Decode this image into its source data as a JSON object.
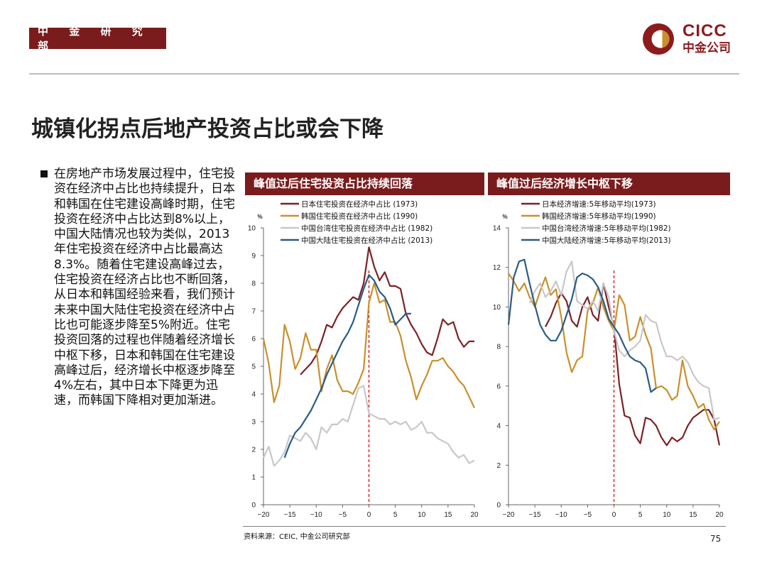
{
  "header": {
    "department": "中 金 研 究 部",
    "logo_en": "CICC",
    "logo_cn": "中金公司"
  },
  "title": "城镇化拐点后地产投资占比或会下降",
  "body_text": "在房地产市场发展过程中，住宅投资在经济中占比也持续提升，日本和韩国在住宅建设高峰时期，住宅投资在经济中占比达到8%以上，中国大陆情况也较为类似，2013年住宅投资在经济中占比最高达8.3%。随着住宅建设高峰过去，住宅投资在经济占比也不断回落，从日本和韩国经验来看，我们预计未来中国大陆住宅投资在经济中占比也可能逐步降至5%附近。住宅投资回落的过程也伴随着经济增长中枢下移，日本和韩国在住宅建设高峰过后，经济增长中枢逐步降至4%左右，其中日本下降更为迅速，而韩国下降相对更加渐进。",
  "source": "资料来源：CEIC, 中金公司研究部",
  "page_number": "75",
  "colors": {
    "brand": "#7a1c1d",
    "japan": "#7b2226",
    "korea": "#c8902c",
    "taiwan": "#c8c8c8",
    "china": "#285c86",
    "peak_line": "#e01a1a"
  },
  "chart_data": [
    {
      "type": "line",
      "title": "峰值过后住宅投资占比持续回落",
      "unit": "%",
      "xlim": [
        -20,
        20
      ],
      "ylim": [
        0,
        10
      ],
      "xticks": [
        -20,
        -15,
        -10,
        -5,
        0,
        5,
        10,
        15,
        20
      ],
      "yticks": [
        0,
        1,
        2,
        3,
        4,
        5,
        6,
        7,
        8,
        9,
        10
      ],
      "peak_marker_x": 0,
      "legend_position": "top",
      "series": [
        {
          "name": "日本住宅投资在经济中占比 (1973)",
          "color_key": "japan",
          "x": [
            -13,
            -12,
            -11,
            -10,
            -9,
            -8,
            -7,
            -6,
            -5,
            -4,
            -3,
            -2,
            -1,
            0,
            1,
            2,
            3,
            4,
            5,
            6,
            7,
            8,
            9,
            10,
            11,
            12,
            13,
            14,
            15,
            16,
            17,
            18,
            19,
            20
          ],
          "y": [
            4.7,
            4.9,
            5.1,
            5.4,
            5.9,
            6.5,
            6.4,
            6.8,
            7.1,
            7.3,
            7.5,
            7.4,
            8.0,
            9.3,
            8.6,
            8.1,
            8.4,
            7.9,
            7.9,
            7.8,
            6.9,
            6.5,
            6.2,
            5.8,
            5.5,
            5.4,
            6.0,
            6.7,
            6.5,
            6.6,
            6.0,
            5.7,
            5.9,
            5.9
          ]
        },
        {
          "name": "韩国住宅投资在经济中占比 (1990)",
          "color_key": "korea",
          "x": [
            -20,
            -19,
            -18,
            -17,
            -16,
            -15,
            -14,
            -13,
            -12,
            -11,
            -10,
            -9,
            -8,
            -7,
            -6,
            -5,
            -4,
            -3,
            -2,
            -1,
            0,
            1,
            2,
            3,
            4,
            5,
            6,
            7,
            8,
            9,
            10,
            11,
            12,
            13,
            14,
            15,
            16,
            17,
            18,
            19,
            20
          ],
          "y": [
            6.0,
            5.1,
            3.7,
            4.3,
            6.5,
            5.9,
            4.9,
            5.3,
            6.2,
            5.6,
            5.6,
            4.1,
            4.9,
            5.4,
            4.5,
            4.1,
            4.1,
            4.0,
            4.4,
            4.9,
            7.3,
            8.0,
            7.3,
            7.4,
            6.6,
            6.6,
            6.1,
            5.2,
            4.6,
            3.8,
            4.3,
            4.7,
            5.2,
            5.2,
            5.3,
            5.0,
            4.8,
            4.5,
            4.3,
            3.9,
            3.5
          ]
        },
        {
          "name": "中国台湾住宅投资在经济中占比 (1982)",
          "color_key": "taiwan",
          "x": [
            -20,
            -19,
            -18,
            -17,
            -16,
            -15,
            -14,
            -13,
            -12,
            -11,
            -10,
            -9,
            -8,
            -7,
            -6,
            -5,
            -4,
            -3,
            -2,
            -1,
            0,
            1,
            2,
            3,
            4,
            5,
            6,
            7,
            8,
            9,
            10,
            11,
            12,
            13,
            14,
            15,
            16,
            17,
            18,
            19,
            20
          ],
          "y": [
            1.7,
            2.1,
            1.4,
            1.6,
            1.9,
            2.5,
            2.4,
            2.3,
            2.6,
            2.4,
            2.0,
            2.8,
            2.6,
            2.9,
            2.9,
            3.1,
            3.0,
            3.6,
            4.2,
            4.3,
            3.3,
            3.2,
            3.1,
            3.1,
            2.9,
            3.0,
            2.9,
            3.0,
            2.7,
            2.8,
            3.0,
            2.6,
            2.6,
            2.4,
            2.3,
            2.2,
            1.9,
            1.7,
            1.8,
            1.5,
            1.6
          ]
        },
        {
          "name": "中国大陆住宅投资在经济中占比 (2013)",
          "color_key": "china",
          "x": [
            -16,
            -15,
            -14,
            -13,
            -12,
            -11,
            -10,
            -9,
            -8,
            -7,
            -6,
            -5,
            -4,
            -3,
            -2,
            -1,
            0,
            1,
            2,
            3,
            4,
            5,
            6,
            7,
            8
          ],
          "y": [
            1.7,
            2.2,
            2.6,
            2.8,
            3.1,
            3.4,
            3.8,
            4.2,
            4.7,
            5.1,
            5.5,
            5.9,
            6.2,
            6.6,
            7.2,
            7.8,
            8.3,
            8.1,
            7.7,
            7.5,
            7.1,
            6.5,
            6.7,
            6.9,
            6.9
          ]
        }
      ]
    },
    {
      "type": "line",
      "title": "峰值过后经济增长中枢下移",
      "unit": "%",
      "xlim": [
        -20,
        20
      ],
      "ylim": [
        0,
        14
      ],
      "xticks": [
        -20,
        -15,
        -10,
        -5,
        0,
        5,
        10,
        15,
        20
      ],
      "yticks": [
        0,
        2,
        4,
        6,
        8,
        10,
        12,
        14
      ],
      "peak_marker_x": 0,
      "legend_position": "top",
      "series": [
        {
          "name": "日本经济增速:5年移动平均(1973)",
          "color_key": "japan",
          "x": [
            -13,
            -12,
            -11,
            -10,
            -9,
            -8,
            -7,
            -6,
            -5,
            -4,
            -3,
            -2,
            -1,
            0,
            1,
            2,
            3,
            4,
            5,
            6,
            7,
            8,
            9,
            10,
            11,
            12,
            13,
            14,
            15,
            16,
            17,
            18,
            19,
            20
          ],
          "y": [
            9.0,
            9.5,
            10.2,
            10.7,
            10.3,
            9.3,
            9.0,
            10.0,
            10.5,
            9.6,
            9.3,
            11.2,
            10.0,
            9.0,
            6.1,
            4.5,
            4.4,
            3.5,
            3.1,
            4.4,
            4.3,
            4.0,
            3.4,
            3.0,
            3.4,
            3.2,
            3.4,
            4.0,
            4.4,
            4.6,
            4.8,
            4.8,
            4.3,
            3.0
          ]
        },
        {
          "name": "韩国经济增速:5年移动平均(1990)",
          "color_key": "korea",
          "x": [
            -20,
            -19,
            -18,
            -17,
            -16,
            -15,
            -14,
            -13,
            -12,
            -11,
            -10,
            -9,
            -8,
            -7,
            -6,
            -5,
            -4,
            -3,
            -2,
            -1,
            0,
            1,
            2,
            3,
            4,
            5,
            6,
            7,
            8,
            9,
            10,
            11,
            12,
            13,
            14,
            15,
            16,
            17,
            18,
            19,
            20
          ],
          "y": [
            11.7,
            11.3,
            10.8,
            11.2,
            10.5,
            10.0,
            10.8,
            11.5,
            10.6,
            10.9,
            9.5,
            7.7,
            6.7,
            7.3,
            7.5,
            9.8,
            10.2,
            11.0,
            10.0,
            9.3,
            8.8,
            10.6,
            10.1,
            8.3,
            8.5,
            9.5,
            8.6,
            7.9,
            5.9,
            6.0,
            5.8,
            5.3,
            5.5,
            7.3,
            6.0,
            5.5,
            4.9,
            5.1,
            4.3,
            3.8,
            4.2
          ]
        },
        {
          "name": "中国台湾经济增速:5年移动平均(1982)",
          "color_key": "taiwan",
          "x": [
            -16,
            -15,
            -14,
            -13,
            -12,
            -11,
            -10,
            -9,
            -8,
            -7,
            -6,
            -5,
            -4,
            -3,
            -2,
            -1,
            0,
            1,
            2,
            3,
            4,
            5,
            6,
            7,
            8,
            9,
            10,
            11,
            12,
            13,
            14,
            15,
            16,
            17,
            18,
            19,
            20
          ],
          "y": [
            10.2,
            10.8,
            11.2,
            10.5,
            10.8,
            11.3,
            10.6,
            11.8,
            12.3,
            10.3,
            10.1,
            9.9,
            10.3,
            9.8,
            11.2,
            10.5,
            8.8,
            7.8,
            7.5,
            7.8,
            8.0,
            8.3,
            9.6,
            9.3,
            9.2,
            8.2,
            7.5,
            7.5,
            7.3,
            7.5,
            7.2,
            6.6,
            6.2,
            6.0,
            5.9,
            4.3,
            4.4
          ]
        },
        {
          "name": "中国大陆经济增速:5年移动平均(2013)",
          "color_key": "china",
          "x": [
            -20,
            -19,
            -18,
            -17,
            -16,
            -15,
            -14,
            -13,
            -12,
            -11,
            -10,
            -9,
            -8,
            -7,
            -6,
            -5,
            -4,
            -3,
            -2,
            -1,
            0,
            1,
            2,
            3,
            4,
            5,
            6,
            7,
            8
          ],
          "y": [
            9.1,
            11.5,
            12.3,
            12.4,
            11.2,
            10.1,
            9.1,
            8.6,
            8.3,
            8.3,
            8.8,
            9.6,
            10.4,
            11.5,
            11.7,
            11.6,
            11.4,
            11.0,
            10.3,
            9.4,
            9.0,
            8.6,
            8.0,
            7.5,
            7.3,
            7.2,
            6.9,
            5.7,
            5.9
          ]
        }
      ]
    }
  ]
}
